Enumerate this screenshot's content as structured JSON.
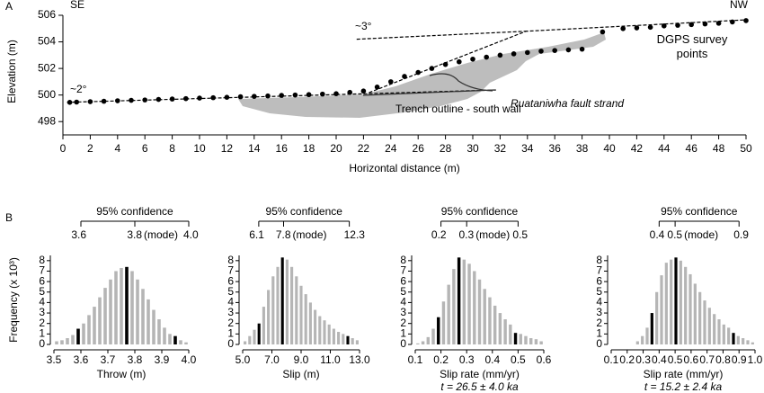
{
  "chart_data": [
    {
      "type": "scatter",
      "panel_label": "A",
      "xlabel": "Horizontal distance (m)",
      "ylabel": "Elevation (m)",
      "xlim": [
        0,
        50
      ],
      "xticks": [
        0,
        2,
        4,
        6,
        8,
        10,
        12,
        14,
        16,
        18,
        20,
        22,
        24,
        26,
        28,
        30,
        32,
        34,
        36,
        38,
        40,
        42,
        44,
        46,
        48,
        50
      ],
      "ylim": [
        497,
        506
      ],
      "yticks": [
        498,
        500,
        502,
        504,
        506
      ],
      "series": [
        {
          "name": "DGPS survey points",
          "color": "#000000",
          "x": [
            0.5,
            1,
            2,
            3,
            4,
            5,
            6,
            7,
            8,
            9,
            10,
            11,
            12,
            13,
            14,
            15,
            16,
            17,
            18,
            19,
            20,
            21,
            22,
            23,
            24,
            25,
            26,
            27,
            28,
            29,
            30,
            31,
            32,
            33,
            34,
            35,
            36,
            37,
            38,
            39.5,
            41,
            42,
            43,
            44,
            45,
            46,
            47,
            48,
            49,
            50
          ],
          "values": [
            499.45,
            499.47,
            499.5,
            499.53,
            499.57,
            499.6,
            499.63,
            499.67,
            499.7,
            499.73,
            499.77,
            499.8,
            499.83,
            499.87,
            499.9,
            499.93,
            499.97,
            500.0,
            500.03,
            500.07,
            500.1,
            500.2,
            500.3,
            500.6,
            501.0,
            501.4,
            501.7,
            502.0,
            502.3,
            502.5,
            502.7,
            502.85,
            503.0,
            503.1,
            503.2,
            503.3,
            503.35,
            503.4,
            503.45,
            504.75,
            505.0,
            505.05,
            505.1,
            505.2,
            505.25,
            505.3,
            505.35,
            505.4,
            505.5,
            505.6
          ]
        }
      ],
      "trend_lines": [
        {
          "x": [
            0.3,
            31.7
          ],
          "values": [
            499.45,
            500.38
          ]
        },
        {
          "x": [
            22.4,
            33.9,
            50
          ],
          "values": [
            500.18,
            504.8,
            505.66
          ]
        },
        {
          "x": [
            21.5,
            33.9
          ],
          "values": [
            504.2,
            504.8
          ]
        }
      ],
      "annotations": [
        "SE",
        "NW",
        "~3°",
        "~2°",
        "Ruataniwha fault strand",
        "Trench outline - south wall"
      ]
    },
    {
      "type": "histogram",
      "panel_label": "B",
      "ylabel": "Frequency (x 10³)",
      "xlabel": "Throw (m)",
      "xlim": [
        3.5,
        4.0
      ],
      "xticks": [
        3.5,
        3.6,
        3.7,
        3.8,
        3.9,
        {
          "value": 4.0,
          "label": "4.0"
        }
      ],
      "ylim": [
        0,
        8.5
      ],
      "yticks": [
        0,
        1,
        2,
        3,
        4,
        5,
        6,
        7,
        8
      ],
      "bins": [
        3.5,
        3.52,
        3.54,
        3.56,
        3.58,
        3.6,
        3.62,
        3.64,
        3.66,
        3.68,
        3.7,
        3.72,
        3.74,
        3.76,
        3.78,
        3.8,
        3.82,
        3.84,
        3.86,
        3.88,
        3.9,
        3.92,
        3.94,
        3.96,
        3.98,
        4.0
      ],
      "counts": [
        0.3,
        0.4,
        0.6,
        0.9,
        1.5,
        2.0,
        2.8,
        3.6,
        4.5,
        5.4,
        6.2,
        7.0,
        7.3,
        7.4,
        7.0,
        6.2,
        5.3,
        4.3,
        3.3,
        2.4,
        1.6,
        1.0,
        0.8,
        0.4,
        0.2
      ],
      "color": "#b5b5b5",
      "highlight_bins": [
        4,
        13,
        22
      ],
      "highlight_color": "#000000",
      "confidence": {
        "label": "95% confidence",
        "low": 3.6,
        "mode": 3.8,
        "high": {
          "value": 4.0,
          "label": "4.0"
        },
        "mode_label": "(mode)"
      }
    },
    {
      "type": "histogram",
      "xlabel": "Slip (m)",
      "xlim": [
        5,
        13
      ],
      "xticks": [
        {
          "value": 5,
          "label": "5.0"
        },
        {
          "value": 7,
          "label": "7.0"
        },
        {
          "value": 9,
          "label": "9.0"
        },
        {
          "value": 11,
          "label": "11.0"
        },
        {
          "value": 13,
          "label": "13.0"
        }
      ],
      "ylim": [
        0,
        8.5
      ],
      "yticks": [
        0,
        1,
        2,
        3,
        4,
        5,
        6,
        7,
        8
      ],
      "bins": [
        5.0,
        5.32,
        5.64,
        5.96,
        6.28,
        6.6,
        6.92,
        7.24,
        7.56,
        7.88,
        8.2,
        8.52,
        8.84,
        9.16,
        9.48,
        9.8,
        10.12,
        10.44,
        10.76,
        11.08,
        11.4,
        11.72,
        12.04,
        12.36,
        12.68,
        13.0
      ],
      "counts": [
        0.3,
        0.8,
        1.4,
        2.0,
        3.6,
        5.2,
        6.5,
        7.4,
        8.3,
        8.1,
        7.4,
        6.5,
        5.6,
        4.8,
        4.0,
        3.3,
        2.7,
        2.3,
        1.9,
        1.5,
        1.2,
        1.0,
        0.8,
        0.6,
        0.4
      ],
      "color": "#b5b5b5",
      "highlight_bins": [
        3,
        8,
        22
      ],
      "highlight_color": "#000000",
      "confidence": {
        "label": "95% confidence",
        "low": 6.1,
        "mode": 7.8,
        "high": 12.3,
        "mode_label": "(mode)"
      }
    },
    {
      "type": "histogram",
      "xlabel": "Slip rate (mm/yr)",
      "subtitle": "t = 26.5 ± 4.0 ka",
      "xlim": [
        0.1,
        0.6
      ],
      "xticks": [
        0.1,
        0.2,
        0.3,
        0.4,
        0.5,
        0.6
      ],
      "ylim": [
        0,
        8.5
      ],
      "yticks": [
        0,
        1,
        2,
        3,
        4,
        5,
        6,
        7,
        8
      ],
      "bins": [
        0.1,
        0.12,
        0.14,
        0.16,
        0.18,
        0.2,
        0.22,
        0.24,
        0.26,
        0.28,
        0.3,
        0.32,
        0.34,
        0.36,
        0.38,
        0.4,
        0.42,
        0.44,
        0.46,
        0.48,
        0.5,
        0.52,
        0.54,
        0.56,
        0.58,
        0.6
      ],
      "counts": [
        0.1,
        0.3,
        0.7,
        1.5,
        2.6,
        4.1,
        5.7,
        7.2,
        8.3,
        8.1,
        7.7,
        7.0,
        6.2,
        5.3,
        4.5,
        3.7,
        3.0,
        2.4,
        1.9,
        1.1,
        1.0,
        0.8,
        0.6,
        0.5,
        0.3
      ],
      "color": "#b5b5b5",
      "highlight_bins": [
        4,
        8,
        19
      ],
      "highlight_color": "#000000",
      "confidence": {
        "label": "95% confidence",
        "low": 0.2,
        "mode": 0.3,
        "high": 0.5,
        "mode_label": "(mode)"
      }
    },
    {
      "type": "histogram",
      "xlabel": "Slip rate (mm/yr)",
      "subtitle": "t = 15.2 ± 2.4 ka",
      "xlim": [
        0.1,
        1.0
      ],
      "xticks": [
        0.1,
        0.2,
        0.3,
        0.4,
        0.5,
        0.6,
        0.7,
        0.8,
        0.9,
        {
          "value": 1.0,
          "label": "1.0"
        }
      ],
      "ylim": [
        0,
        8.5
      ],
      "yticks": [
        0,
        1,
        2,
        3,
        4,
        5,
        6,
        7,
        8
      ],
      "bins": [
        0.25,
        0.28,
        0.31,
        0.34,
        0.37,
        0.4,
        0.43,
        0.46,
        0.49,
        0.52,
        0.55,
        0.58,
        0.61,
        0.64,
        0.67,
        0.7,
        0.73,
        0.76,
        0.79,
        0.82,
        0.85,
        0.88,
        0.91,
        0.94,
        0.97,
        1.0
      ],
      "counts": [
        0.3,
        0.8,
        1.6,
        3.0,
        5.0,
        6.6,
        7.8,
        8.1,
        8.3,
        8.0,
        7.4,
        6.7,
        5.8,
        5.0,
        4.2,
        3.5,
        2.9,
        2.4,
        1.9,
        1.6,
        1.1,
        0.8,
        0.6,
        0.4,
        0.2
      ],
      "color": "#b5b5b5",
      "highlight_bins": [
        3,
        8,
        20
      ],
      "highlight_color": "#000000",
      "confidence": {
        "label": "95% confidence",
        "low": 0.4,
        "mode": 0.5,
        "high": 0.9,
        "mode_label": "(mode)"
      }
    }
  ]
}
